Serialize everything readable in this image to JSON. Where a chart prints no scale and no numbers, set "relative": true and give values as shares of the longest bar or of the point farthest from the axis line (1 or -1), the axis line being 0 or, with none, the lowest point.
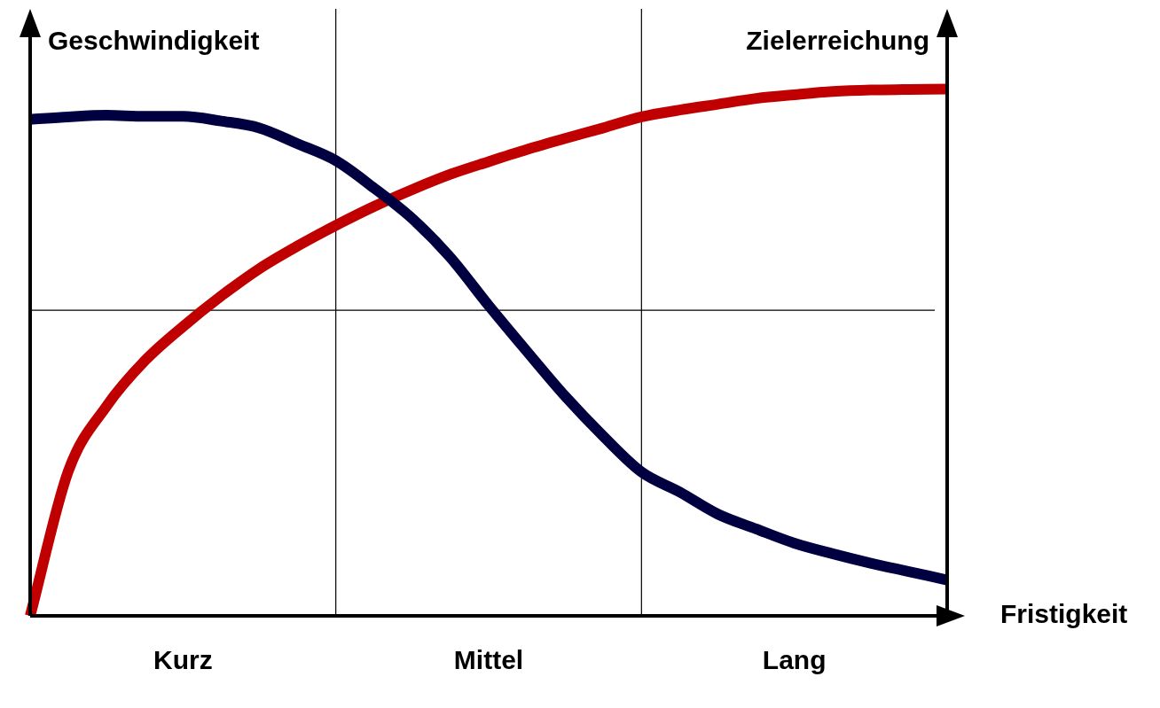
{
  "chart_data": {
    "type": "line",
    "relative": true,
    "ylabel": "Geschwindigkeit",
    "y2label": "Zielerreichung",
    "xlabel": "Fristigkeit",
    "categories": [
      null,
      null,
      null,
      null,
      "Kurz",
      null,
      null,
      null,
      null,
      null,
      null,
      null,
      "Mittel",
      null,
      null,
      null,
      null,
      null,
      null,
      null,
      "Lang",
      null,
      null,
      null,
      null
    ],
    "marker": "none",
    "line_style": "solid",
    "legend": false,
    "grid": "x",
    "ref_lines": [
      {
        "axis": "y",
        "value": 0.58,
        "label": null,
        "color": "#000000"
      }
    ],
    "series": [
      {
        "color": "#000040",
        "values": [
          0.942,
          0.947,
          0.95,
          0.948,
          0.948,
          0.939,
          0.926,
          0.896,
          0.864,
          0.812,
          0.754,
          0.68,
          0.589,
          0.502,
          0.417,
          0.341,
          0.273,
          0.235,
          0.193,
          0.165,
          0.138,
          0.118,
          0.1,
          0.084,
          0.068
        ]
      },
      {
        "color": "#c00000",
        "values": [
          0,
          0.275,
          0.398,
          0.484,
          0.549,
          0.607,
          0.659,
          0.702,
          0.741,
          0.777,
          0.809,
          0.838,
          0.862,
          0.885,
          0.906,
          0.926,
          0.947,
          0.96,
          0.971,
          0.982,
          0.989,
          0.995,
          0.998,
          0.999,
          1
        ]
      }
    ]
  }
}
